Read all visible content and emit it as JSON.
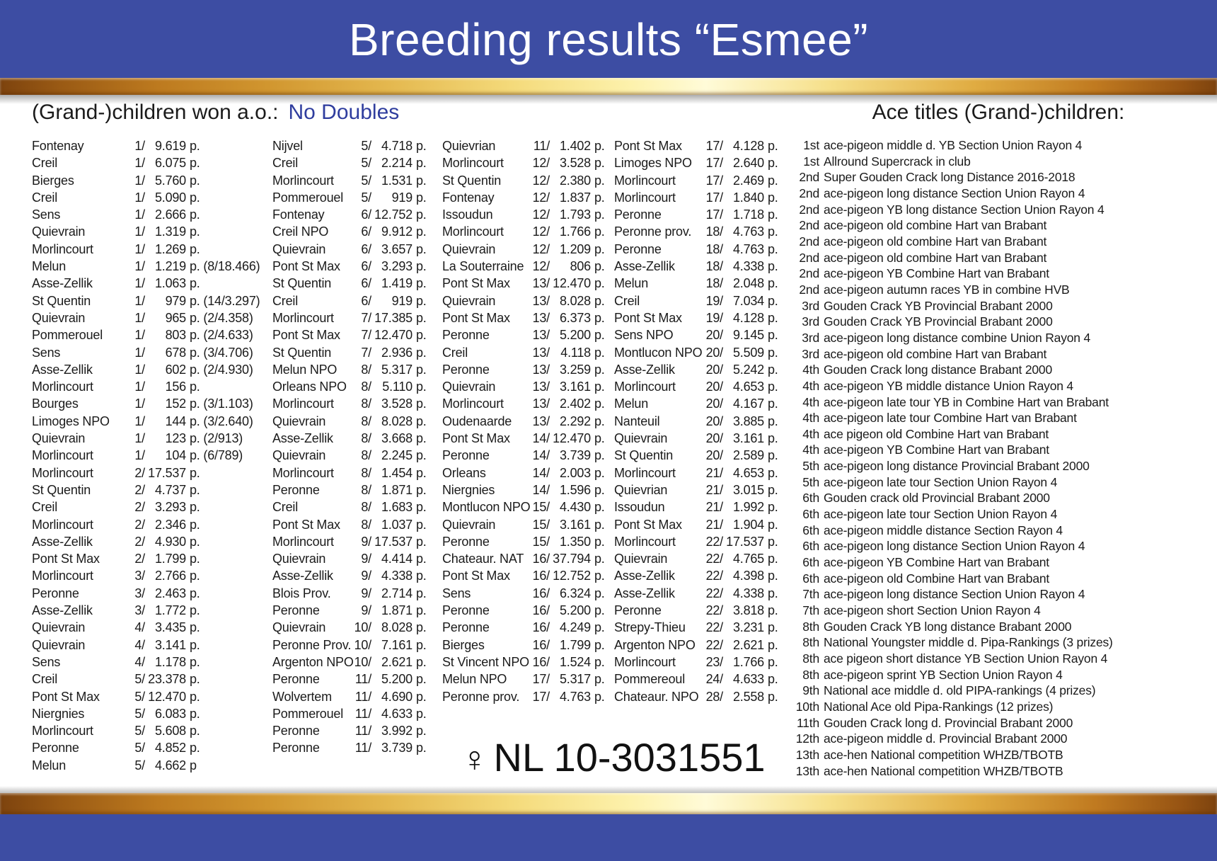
{
  "header": {
    "title": "Breeding results “Esmee”"
  },
  "sections": {
    "left_heading": "(Grand-)children won a.o.:",
    "no_doubles": "No Doubles",
    "right_heading": "Ace titles (Grand-)children:"
  },
  "ring": {
    "sex": "♀",
    "number": "NL 10-3031551"
  },
  "colors": {
    "header_blue": "#3D4DA3",
    "footer_blue": "#3D4DA3",
    "accent_blue": "#2F3D9E",
    "gold": "#E8B84A",
    "text": "#1B1B1B"
  },
  "results": {
    "col1": [
      {
        "n": "Fontenay",
        "pl": "1/",
        "c": "9.619",
        "s": "p."
      },
      {
        "n": "Creil",
        "pl": "1/",
        "c": "6.075",
        "s": "p."
      },
      {
        "n": "Bierges",
        "pl": "1/",
        "c": "5.760",
        "s": "p."
      },
      {
        "n": "Creil",
        "pl": "1/",
        "c": "5.090",
        "s": "p."
      },
      {
        "n": "Sens",
        "pl": "1/",
        "c": "2.666",
        "s": "p."
      },
      {
        "n": "Quievrain",
        "pl": "1/",
        "c": "1.319",
        "s": "p."
      },
      {
        "n": "Morlincourt",
        "pl": "1/",
        "c": "1.269",
        "s": "p."
      },
      {
        "n": "Melun",
        "pl": "1/",
        "c": "1.219",
        "s": "p. (8/18.466)"
      },
      {
        "n": "Asse-Zellik",
        "pl": "1/",
        "c": "1.063",
        "s": "p."
      },
      {
        "n": "St Quentin",
        "pl": "1/",
        "c": "979",
        "s": "p. (14/3.297)"
      },
      {
        "n": "Quievrain",
        "pl": "1/",
        "c": "965",
        "s": "p. (2/4.358)"
      },
      {
        "n": "Pommerouel",
        "pl": "1/",
        "c": "803",
        "s": "p. (2/4.633)"
      },
      {
        "n": "Sens",
        "pl": "1/",
        "c": "678",
        "s": "p. (3/4.706)"
      },
      {
        "n": "Asse-Zellik",
        "pl": "1/",
        "c": "602",
        "s": "p. (2/4.930)"
      },
      {
        "n": "Morlincourt",
        "pl": "1/",
        "c": "156",
        "s": "p."
      },
      {
        "n": "Bourges",
        "pl": "1/",
        "c": "152",
        "s": "p. (3/1.103)"
      },
      {
        "n": "Limoges NPO",
        "pl": "1/",
        "c": "144",
        "s": "p. (3/2.640)"
      },
      {
        "n": "Quievrain",
        "pl": "1/",
        "c": "123",
        "s": "p. (2/913)"
      },
      {
        "n": "Morlincourt",
        "pl": "1/",
        "c": "104",
        "s": "p. (6/789)"
      },
      {
        "n": "Morlincourt",
        "pl": "2/",
        "c": "17.537",
        "s": "p."
      },
      {
        "n": "St Quentin",
        "pl": "2/",
        "c": "4.737",
        "s": "p."
      },
      {
        "n": "Creil",
        "pl": "2/",
        "c": "3.293",
        "s": "p."
      },
      {
        "n": "Morlincourt",
        "pl": "2/",
        "c": "2.346",
        "s": "p."
      },
      {
        "n": "Asse-Zellik",
        "pl": "2/",
        "c": "4.930",
        "s": "p."
      },
      {
        "n": "Pont St Max",
        "pl": "2/",
        "c": "1.799",
        "s": "p."
      },
      {
        "n": "Morlincourt",
        "pl": "3/",
        "c": "2.766",
        "s": "p."
      },
      {
        "n": "Peronne",
        "pl": "3/",
        "c": "2.463",
        "s": "p."
      },
      {
        "n": "Asse-Zellik",
        "pl": "3/",
        "c": "1.772",
        "s": "p."
      },
      {
        "n": "Quievrain",
        "pl": "4/",
        "c": "3.435",
        "s": "p."
      },
      {
        "n": "Quievrain",
        "pl": "4/",
        "c": "3.141",
        "s": "p."
      },
      {
        "n": "Sens",
        "pl": "4/",
        "c": "1.178",
        "s": "p."
      },
      {
        "n": "Creil",
        "pl": "5/",
        "c": "23.378",
        "s": "p."
      },
      {
        "n": "Pont St Max",
        "pl": "5/",
        "c": "12.470",
        "s": "p."
      },
      {
        "n": "Niergnies",
        "pl": "5/",
        "c": "6.083",
        "s": "p."
      },
      {
        "n": "Morlincourt",
        "pl": "5/",
        "c": "5.608",
        "s": "p."
      },
      {
        "n": "Peronne",
        "pl": "5/",
        "c": "4.852",
        "s": "p."
      },
      {
        "n": "Melun",
        "pl": "5/",
        "c": "4.662",
        "s": "p"
      }
    ],
    "col2": [
      {
        "n": "Nijvel",
        "pl": "5/",
        "c": "4.718",
        "s": "p."
      },
      {
        "n": "Creil",
        "pl": "5/",
        "c": "2.214",
        "s": "p."
      },
      {
        "n": "Morlincourt",
        "pl": "5/",
        "c": "1.531",
        "s": "p."
      },
      {
        "n": "Pommerouel",
        "pl": "5/",
        "c": "919",
        "s": "p."
      },
      {
        "n": "Fontenay",
        "pl": "6/",
        "c": "12.752",
        "s": "p."
      },
      {
        "n": "Creil NPO",
        "pl": "6/",
        "c": "9.912",
        "s": "p."
      },
      {
        "n": "Quievrain",
        "pl": "6/",
        "c": "3.657",
        "s": "p."
      },
      {
        "n": "Pont St Max",
        "pl": "6/",
        "c": "3.293",
        "s": "p."
      },
      {
        "n": "St Quentin",
        "pl": "6/",
        "c": "1.419",
        "s": "p."
      },
      {
        "n": "Creil",
        "pl": "6/",
        "c": "919",
        "s": "p."
      },
      {
        "n": "Morlincourt",
        "pl": "7/",
        "c": "17.385",
        "s": "p."
      },
      {
        "n": "Pont St Max",
        "pl": "7/",
        "c": "12.470",
        "s": "p."
      },
      {
        "n": "St Quentin",
        "pl": "7/",
        "c": "2.936",
        "s": "p."
      },
      {
        "n": "Melun NPO",
        "pl": "8/",
        "c": "5.317",
        "s": "p."
      },
      {
        "n": "Orleans NPO",
        "pl": "8/",
        "c": "5.110",
        "s": "p."
      },
      {
        "n": "Morlincourt",
        "pl": "8/",
        "c": "3.528",
        "s": "p."
      },
      {
        "n": "Quievrain",
        "pl": "8/",
        "c": "8.028",
        "s": "p."
      },
      {
        "n": "Asse-Zellik",
        "pl": "8/",
        "c": "3.668",
        "s": "p."
      },
      {
        "n": "Quievrain",
        "pl": "8/",
        "c": "2.245",
        "s": "p."
      },
      {
        "n": "Morlincourt",
        "pl": "8/",
        "c": "1.454",
        "s": "p."
      },
      {
        "n": "Peronne",
        "pl": "8/",
        "c": "1.871",
        "s": "p."
      },
      {
        "n": "Creil",
        "pl": "8/",
        "c": "1.683",
        "s": "p."
      },
      {
        "n": "Pont St Max",
        "pl": "8/",
        "c": "1.037",
        "s": "p."
      },
      {
        "n": "Morlincourt",
        "pl": "9/",
        "c": "17.537",
        "s": "p."
      },
      {
        "n": "Quievrain",
        "pl": "9/",
        "c": "4.414",
        "s": "p."
      },
      {
        "n": "Asse-Zellik",
        "pl": "9/",
        "c": "4.338",
        "s": "p."
      },
      {
        "n": "Blois Prov.",
        "pl": "9/",
        "c": "2.714",
        "s": "p."
      },
      {
        "n": "Peronne",
        "pl": "9/",
        "c": "1.871",
        "s": "p."
      },
      {
        "n": "Quievrain",
        "pl": "10/",
        "c": "8.028",
        "s": "p."
      },
      {
        "n": "Peronne Prov.",
        "pl": "10/",
        "c": "7.161",
        "s": "p."
      },
      {
        "n": "Argenton NPO",
        "pl": "10/",
        "c": "2.621",
        "s": "p."
      },
      {
        "n": "Peronne",
        "pl": "11/",
        "c": "5.200",
        "s": "p."
      },
      {
        "n": "Wolvertem",
        "pl": "11/",
        "c": "4.690",
        "s": "p."
      },
      {
        "n": "Pommerouel",
        "pl": "11/",
        "c": "4.633",
        "s": "p."
      },
      {
        "n": "Peronne",
        "pl": "11/",
        "c": "3.992",
        "s": "p."
      },
      {
        "n": "Peronne",
        "pl": "11/",
        "c": "3.739",
        "s": "p."
      }
    ],
    "col3": [
      {
        "n": "Quievrian",
        "pl": "11/",
        "c": "1.402",
        "s": "p."
      },
      {
        "n": "Morlincourt",
        "pl": "12/",
        "c": "3.528",
        "s": "p."
      },
      {
        "n": "St Quentin",
        "pl": "12/",
        "c": "2.380",
        "s": "p."
      },
      {
        "n": "Fontenay",
        "pl": "12/",
        "c": "1.837",
        "s": "p."
      },
      {
        "n": "Issoudun",
        "pl": "12/",
        "c": "1.793",
        "s": "p."
      },
      {
        "n": "Morlincourt",
        "pl": "12/",
        "c": "1.766",
        "s": "p."
      },
      {
        "n": "Quievrain",
        "pl": "12/",
        "c": "1.209",
        "s": "p."
      },
      {
        "n": "La Souterraine",
        "pl": "12/",
        "c": "806",
        "s": "p."
      },
      {
        "n": "Pont St Max",
        "pl": "13/",
        "c": "12.470",
        "s": "p."
      },
      {
        "n": "Quievrain",
        "pl": "13/",
        "c": "8.028",
        "s": "p."
      },
      {
        "n": "Pont St Max",
        "pl": "13/",
        "c": "6.373",
        "s": "p."
      },
      {
        "n": "Peronne",
        "pl": "13/",
        "c": "5.200",
        "s": "p."
      },
      {
        "n": "Creil",
        "pl": "13/",
        "c": "4.118",
        "s": "p."
      },
      {
        "n": "Peronne",
        "pl": "13/",
        "c": "3.259",
        "s": "p."
      },
      {
        "n": "Quievrain",
        "pl": "13/",
        "c": "3.161",
        "s": "p."
      },
      {
        "n": "Morlincourt",
        "pl": "13/",
        "c": "2.402",
        "s": "p."
      },
      {
        "n": "Oudenaarde",
        "pl": "13/",
        "c": "2.292",
        "s": "p."
      },
      {
        "n": "Pont St Max",
        "pl": "14/",
        "c": "12.470",
        "s": "p."
      },
      {
        "n": "Peronne",
        "pl": "14/",
        "c": "3.739",
        "s": "p."
      },
      {
        "n": "Orleans",
        "pl": "14/",
        "c": "2.003",
        "s": "p."
      },
      {
        "n": "Niergnies",
        "pl": "14/",
        "c": "1.596",
        "s": "p."
      },
      {
        "n": "Montlucon NPO",
        "pl": "15/",
        "c": "4.430",
        "s": "p."
      },
      {
        "n": "Quievrain",
        "pl": "15/",
        "c": "3.161",
        "s": "p."
      },
      {
        "n": "Peronne",
        "pl": "15/",
        "c": "1.350",
        "s": "p."
      },
      {
        "n": "Chateaur. NAT",
        "pl": "16/",
        "c": "37.794",
        "s": "p."
      },
      {
        "n": "Pont St Max",
        "pl": "16/",
        "c": "12.752",
        "s": "p."
      },
      {
        "n": "Sens",
        "pl": "16/",
        "c": "6.324",
        "s": "p."
      },
      {
        "n": "Peronne",
        "pl": "16/",
        "c": "5.200",
        "s": "p."
      },
      {
        "n": "Peronne",
        "pl": "16/",
        "c": "4.249",
        "s": "p."
      },
      {
        "n": "Bierges",
        "pl": "16/",
        "c": "1.799",
        "s": "p."
      },
      {
        "n": "St Vincent NPO",
        "pl": "16/",
        "c": "1.524",
        "s": "p."
      },
      {
        "n": "Melun NPO",
        "pl": "17/",
        "c": "5.317",
        "s": "p."
      },
      {
        "n": "Peronne prov.",
        "pl": "17/",
        "c": "4.763",
        "s": "p."
      }
    ],
    "col4": [
      {
        "n": "Pont St Max",
        "pl": "17/",
        "c": "4.128",
        "s": "p."
      },
      {
        "n": "Limoges NPO",
        "pl": "17/",
        "c": "2.640",
        "s": "p."
      },
      {
        "n": "Morlincourt",
        "pl": "17/",
        "c": "2.469",
        "s": "p."
      },
      {
        "n": "Morlincourt",
        "pl": "17/",
        "c": "1.840",
        "s": "p."
      },
      {
        "n": "Peronne",
        "pl": "17/",
        "c": "1.718",
        "s": "p."
      },
      {
        "n": "Peronne prov.",
        "pl": "18/",
        "c": "4.763",
        "s": "p."
      },
      {
        "n": "Peronne",
        "pl": "18/",
        "c": "4.763",
        "s": "p."
      },
      {
        "n": "Asse-Zellik",
        "pl": "18/",
        "c": "4.338",
        "s": "p."
      },
      {
        "n": "Melun",
        "pl": "18/",
        "c": "2.048",
        "s": "p."
      },
      {
        "n": "Creil",
        "pl": "19/",
        "c": "7.034",
        "s": "p."
      },
      {
        "n": "Pont St Max",
        "pl": "19/",
        "c": "4.128",
        "s": "p."
      },
      {
        "n": "Sens NPO",
        "pl": "20/",
        "c": "9.145",
        "s": "p."
      },
      {
        "n": "Montlucon NPO",
        "pl": "20/",
        "c": "5.509",
        "s": "p."
      },
      {
        "n": "Asse-Zellik",
        "pl": "20/",
        "c": "5.242",
        "s": "p."
      },
      {
        "n": "Morlincourt",
        "pl": "20/",
        "c": "4.653",
        "s": "p."
      },
      {
        "n": "Melun",
        "pl": "20/",
        "c": "4.167",
        "s": "p."
      },
      {
        "n": "Nanteuil",
        "pl": "20/",
        "c": "3.885",
        "s": "p."
      },
      {
        "n": "Quievrain",
        "pl": "20/",
        "c": "3.161",
        "s": "p."
      },
      {
        "n": "St Quentin",
        "pl": "20/",
        "c": "2.589",
        "s": "p."
      },
      {
        "n": "Morlincourt",
        "pl": "21/",
        "c": "4.653",
        "s": "p."
      },
      {
        "n": "Quievrian",
        "pl": "21/",
        "c": "3.015",
        "s": "p."
      },
      {
        "n": "Issoudun",
        "pl": "21/",
        "c": "1.992",
        "s": "p."
      },
      {
        "n": "Pont St Max",
        "pl": "21/",
        "c": "1.904",
        "s": "p."
      },
      {
        "n": "Morlincourt",
        "pl": "22/",
        "c": "17.537",
        "s": "p."
      },
      {
        "n": "Quievrain",
        "pl": "22/",
        "c": "4.765",
        "s": "p."
      },
      {
        "n": "Asse-Zellik",
        "pl": "22/",
        "c": "4.398",
        "s": "p."
      },
      {
        "n": "Asse-Zellik",
        "pl": "22/",
        "c": "4.338",
        "s": "p."
      },
      {
        "n": "Peronne",
        "pl": "22/",
        "c": "3.818",
        "s": "p."
      },
      {
        "n": "Strepy-Thieu",
        "pl": "22/",
        "c": "3.231",
        "s": "p."
      },
      {
        "n": "Argenton NPO",
        "pl": "22/",
        "c": "2.621",
        "s": "p."
      },
      {
        "n": "Morlincourt",
        "pl": "23/",
        "c": "1.766",
        "s": "p."
      },
      {
        "n": "Pommereoul",
        "pl": "24/",
        "c": "4.633",
        "s": "p."
      },
      {
        "n": "Chateaur. NPO",
        "pl": "28/",
        "c": "2.558",
        "s": "p."
      }
    ]
  },
  "ace_titles": [
    {
      "o": "1st",
      "t": "ace-pigeon middle d. YB Section Union Rayon 4"
    },
    {
      "o": "1st",
      "t": "Allround Supercrack in club"
    },
    {
      "o": "2nd",
      "t": "Super Gouden Crack long Distance 2016-2018"
    },
    {
      "o": "2nd",
      "t": "ace-pigeon long distance Section Union Rayon 4"
    },
    {
      "o": "2nd",
      "t": "ace-pigeon YB long distance Section Union Rayon 4"
    },
    {
      "o": "2nd",
      "t": "ace-pigeon old combine Hart van Brabant"
    },
    {
      "o": "2nd",
      "t": "ace-pigeon old combine Hart van Brabant"
    },
    {
      "o": "2nd",
      "t": "ace-pigeon old combine Hart van Brabant"
    },
    {
      "o": "2nd",
      "t": "ace-pigeon YB Combine Hart van Brabant"
    },
    {
      "o": "2nd",
      "t": "ace-pigeon autumn races YB in combine HVB"
    },
    {
      "o": "3rd",
      "t": "Gouden Crack YB Provincial Brabant 2000"
    },
    {
      "o": "3rd",
      "t": "Gouden Crack YB Provincial Brabant 2000"
    },
    {
      "o": "3rd",
      "t": "ace-pigeon long distance combine Union Rayon 4"
    },
    {
      "o": "3rd",
      "t": "ace-pigeon old combine Hart van Brabant"
    },
    {
      "o": "4th",
      "t": "Gouden Crack long distance Brabant 2000"
    },
    {
      "o": "4th",
      "t": "ace-pigeon YB middle distance Union Rayon 4"
    },
    {
      "o": "4th",
      "t": "ace-pigeon late tour YB in Combine Hart van Brabant"
    },
    {
      "o": "4th",
      "t": "ace-pigeon late tour Combine Hart van Brabant"
    },
    {
      "o": "4th",
      "t": "ace pigeon old Combine Hart van Brabant"
    },
    {
      "o": "4th",
      "t": "ace-pigeon YB Combine Hart van Brabant"
    },
    {
      "o": "5th",
      "t": "ace-pigeon long distance Provincial Brabant 2000"
    },
    {
      "o": "5th",
      "t": "ace-pigeon late tour Section Union Rayon 4"
    },
    {
      "o": "6th",
      "t": "Gouden crack old Provincial Brabant 2000"
    },
    {
      "o": "6th",
      "t": "ace-pigeon late tour Section Union Rayon 4"
    },
    {
      "o": "6th",
      "t": "ace-pigeon middle distance Section Rayon 4"
    },
    {
      "o": "6th",
      "t": "ace-pigeon long distance Section Union Rayon 4"
    },
    {
      "o": "6th",
      "t": "ace-pigeon YB Combine Hart van Brabant"
    },
    {
      "o": "6th",
      "t": "ace-pigeon old Combine Hart van Brabant"
    },
    {
      "o": "7th",
      "t": "ace-pigeon long distance Section Union Rayon 4"
    },
    {
      "o": "7th",
      "t": "ace-pigeon short Section Union Rayon 4"
    },
    {
      "o": "8th",
      "t": "Gouden Crack YB long distance Brabant 2000"
    },
    {
      "o": "8th",
      "t": "National Youngster middle d. Pipa-Rankings (3 prizes)"
    },
    {
      "o": "8th",
      "t": "ace pigeon short distance YB Section Union Rayon 4"
    },
    {
      "o": "8th",
      "t": "ace-pigeon sprint YB Section Union Rayon 4"
    },
    {
      "o": "9th",
      "t": "National ace middle d. old PIPA-rankings (4 prizes)"
    },
    {
      "o": "10th",
      "t": "National Ace old Pipa-Rankings (12 prizes)"
    },
    {
      "o": "11th",
      "t": "Gouden Crack long d. Provincial Brabant 2000"
    },
    {
      "o": "12th",
      "t": "ace-pigeon middle d. Provincial Brabant 2000"
    },
    {
      "o": "13th",
      "t": "ace-hen National competition WHZB/TBOTB"
    },
    {
      "o": "13th",
      "t": "ace-hen National competition WHZB/TBOTB"
    }
  ]
}
